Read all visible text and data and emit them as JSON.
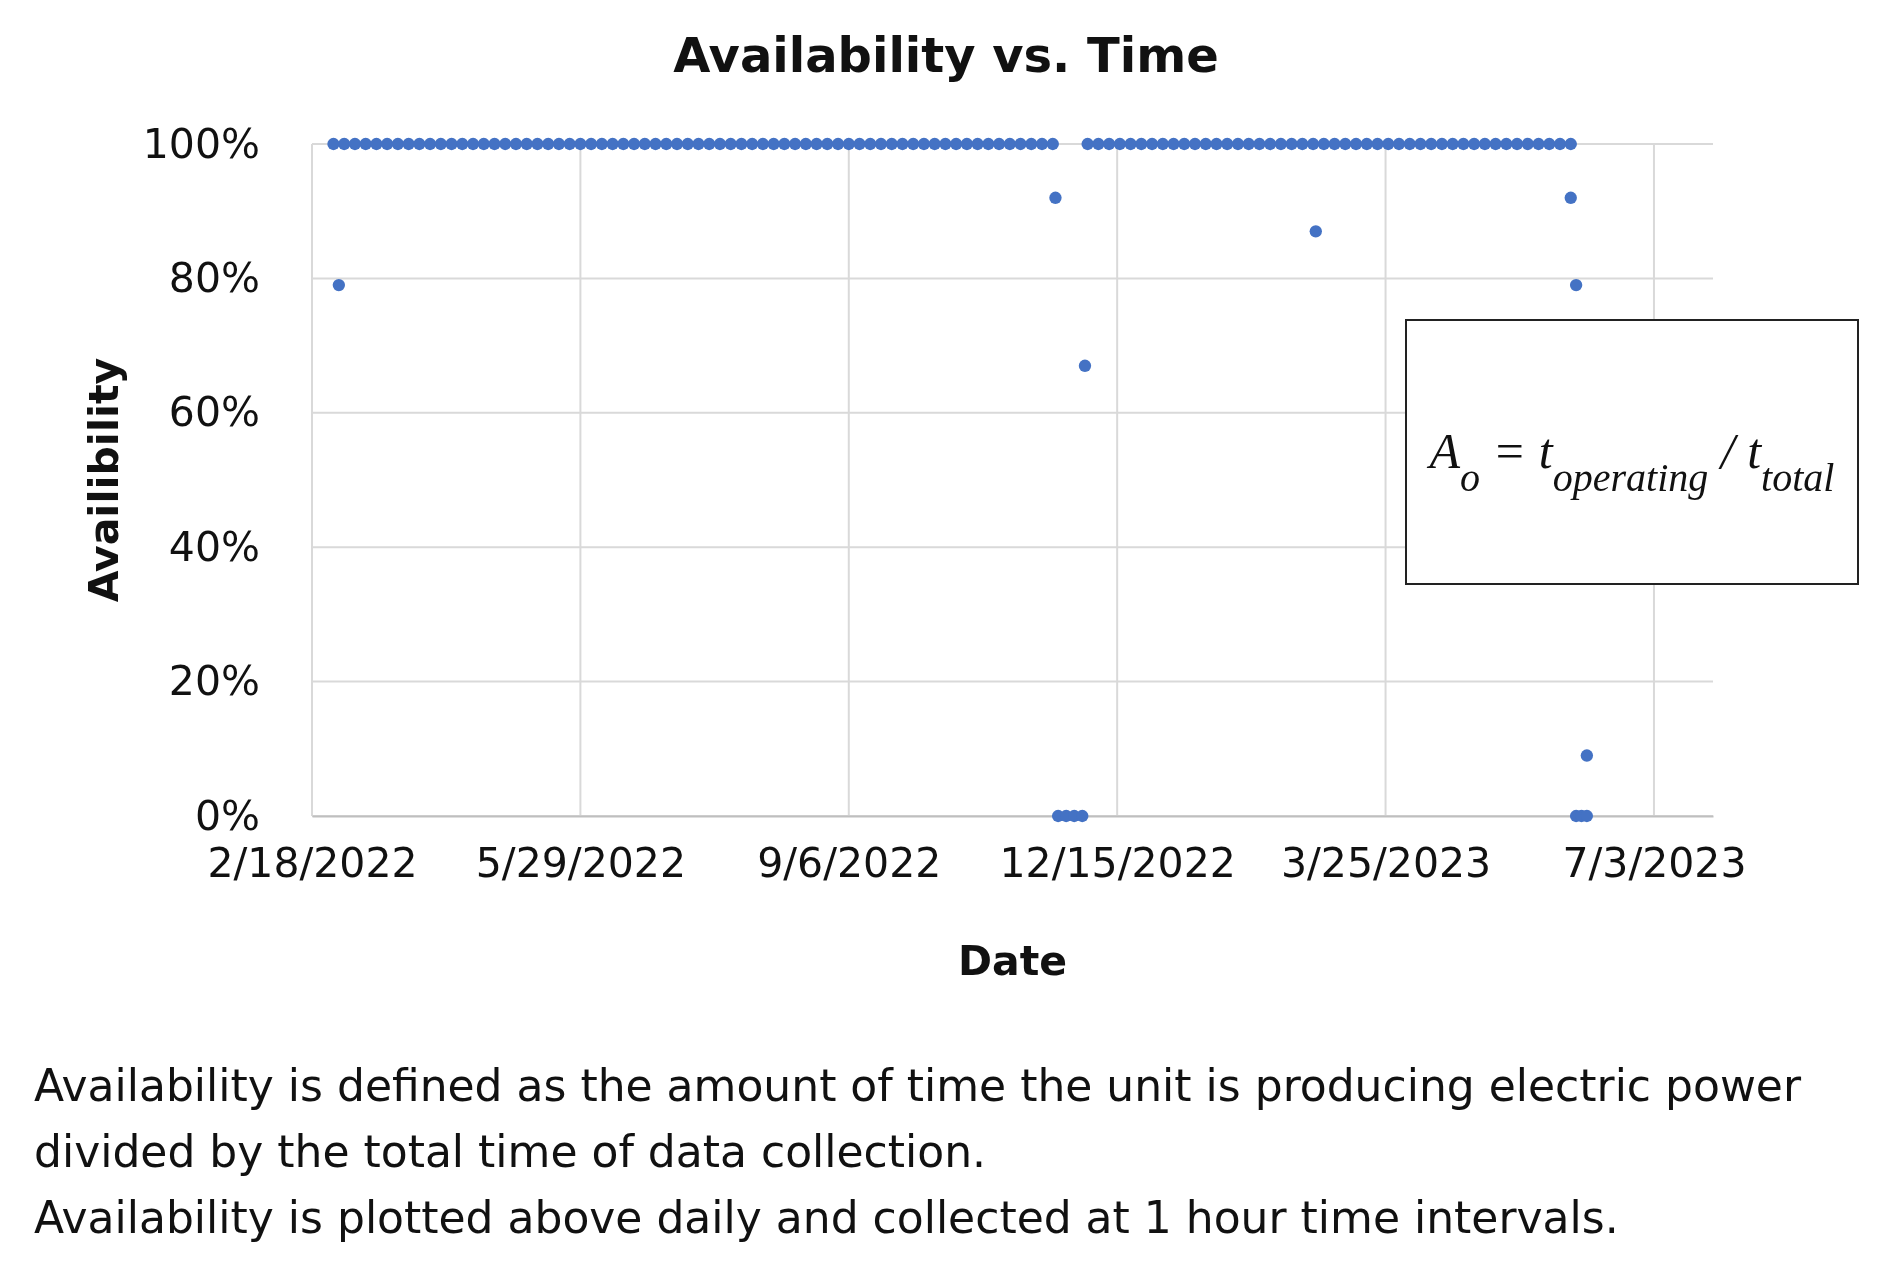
{
  "chart_data": {
    "type": "scatter",
    "title": "Availability vs. Time",
    "xlabel": "Date",
    "ylabel": "Availibility",
    "xlim": [
      "2022-02-18",
      "2023-07-25"
    ],
    "xticks": [
      {
        "value": "2022-02-18",
        "label": "2/18/2022"
      },
      {
        "value": "2022-05-29",
        "label": "5/29/2022"
      },
      {
        "value": "2022-09-06",
        "label": "9/6/2022"
      },
      {
        "value": "2022-12-15",
        "label": "12/15/2022"
      },
      {
        "value": "2023-03-25",
        "label": "3/25/2023"
      },
      {
        "value": "2023-07-03",
        "label": "7/3/2023"
      }
    ],
    "ylim": [
      0,
      100
    ],
    "yticks": [
      {
        "value": 0,
        "label": "0%"
      },
      {
        "value": 20,
        "label": "20%"
      },
      {
        "value": 40,
        "label": "40%"
      },
      {
        "value": 60,
        "label": "60%"
      },
      {
        "value": 80,
        "label": "80%"
      },
      {
        "value": 100,
        "label": "100%"
      }
    ],
    "grid": true,
    "marker": "circle",
    "series": [
      {
        "color": "#4472c4",
        "x": [
          "2022-02-26",
          "2022-02-28",
          "2022-03-02",
          "2022-03-06",
          "2022-03-10",
          "2022-03-14",
          "2022-03-18",
          "2022-03-22",
          "2022-03-26",
          "2022-03-30",
          "2022-04-03",
          "2022-04-07",
          "2022-04-11",
          "2022-04-15",
          "2022-04-19",
          "2022-04-23",
          "2022-04-27",
          "2022-05-01",
          "2022-05-05",
          "2022-05-09",
          "2022-05-13",
          "2022-05-17",
          "2022-05-21",
          "2022-05-25",
          "2022-05-29",
          "2022-06-02",
          "2022-06-06",
          "2022-06-10",
          "2022-06-14",
          "2022-06-18",
          "2022-06-22",
          "2022-06-26",
          "2022-06-30",
          "2022-07-04",
          "2022-07-08",
          "2022-07-12",
          "2022-07-16",
          "2022-07-20",
          "2022-07-24",
          "2022-07-28",
          "2022-08-01",
          "2022-08-05",
          "2022-08-09",
          "2022-08-13",
          "2022-08-17",
          "2022-08-21",
          "2022-08-25",
          "2022-08-29",
          "2022-09-02",
          "2022-09-06",
          "2022-09-10",
          "2022-09-14",
          "2022-09-18",
          "2022-09-22",
          "2022-09-26",
          "2022-09-30",
          "2022-10-04",
          "2022-10-08",
          "2022-10-12",
          "2022-10-16",
          "2022-10-20",
          "2022-10-24",
          "2022-10-28",
          "2022-11-01",
          "2022-11-05",
          "2022-11-09",
          "2022-11-13",
          "2022-11-17",
          "2022-11-21",
          "2022-11-22",
          "2022-11-23",
          "2022-11-26",
          "2022-11-29",
          "2022-12-02",
          "2022-12-03",
          "2022-12-04",
          "2022-12-08",
          "2022-12-12",
          "2022-12-16",
          "2022-12-20",
          "2022-12-24",
          "2022-12-28",
          "2023-01-01",
          "2023-01-05",
          "2023-01-09",
          "2023-01-13",
          "2023-01-17",
          "2023-01-21",
          "2023-01-25",
          "2023-01-29",
          "2023-02-02",
          "2023-02-06",
          "2023-02-10",
          "2023-02-14",
          "2023-02-18",
          "2023-02-22",
          "2023-02-26",
          "2023-02-27",
          "2023-03-02",
          "2023-03-06",
          "2023-03-10",
          "2023-03-14",
          "2023-03-18",
          "2023-03-22",
          "2023-03-26",
          "2023-03-30",
          "2023-04-03",
          "2023-04-07",
          "2023-04-11",
          "2023-04-15",
          "2023-04-19",
          "2023-04-23",
          "2023-04-27",
          "2023-05-01",
          "2023-05-05",
          "2023-05-09",
          "2023-05-13",
          "2023-05-17",
          "2023-05-21",
          "2023-05-25",
          "2023-05-29",
          "2023-06-02",
          "2023-06-02",
          "2023-06-04",
          "2023-06-04",
          "2023-06-06",
          "2023-06-08",
          "2023-06-08"
        ],
        "values": [
          100,
          79,
          100,
          100,
          100,
          100,
          100,
          100,
          100,
          100,
          100,
          100,
          100,
          100,
          100,
          100,
          100,
          100,
          100,
          100,
          100,
          100,
          100,
          100,
          100,
          100,
          100,
          100,
          100,
          100,
          100,
          100,
          100,
          100,
          100,
          100,
          100,
          100,
          100,
          100,
          100,
          100,
          100,
          100,
          100,
          100,
          100,
          100,
          100,
          100,
          100,
          100,
          100,
          100,
          100,
          100,
          100,
          100,
          100,
          100,
          100,
          100,
          100,
          100,
          100,
          100,
          100,
          100,
          100,
          92,
          0,
          0,
          0,
          0,
          67,
          100,
          100,
          100,
          100,
          100,
          100,
          100,
          100,
          100,
          100,
          100,
          100,
          100,
          100,
          100,
          100,
          100,
          100,
          100,
          100,
          100,
          100,
          87,
          100,
          100,
          100,
          100,
          100,
          100,
          100,
          100,
          100,
          100,
          100,
          100,
          100,
          100,
          100,
          100,
          100,
          100,
          100,
          100,
          100,
          100,
          100,
          100,
          92,
          79,
          0,
          0,
          9,
          0
        ]
      }
    ],
    "annotations": [
      "A$_{o}$ = t$_{operating}$ / t$_{total}$",
      "Availability is defined as the amount of time the unit is producing electric power divided by the total time of data collection.",
      "Availability is plotted above daily and collected at 1 hour time intervals."
    ]
  }
}
